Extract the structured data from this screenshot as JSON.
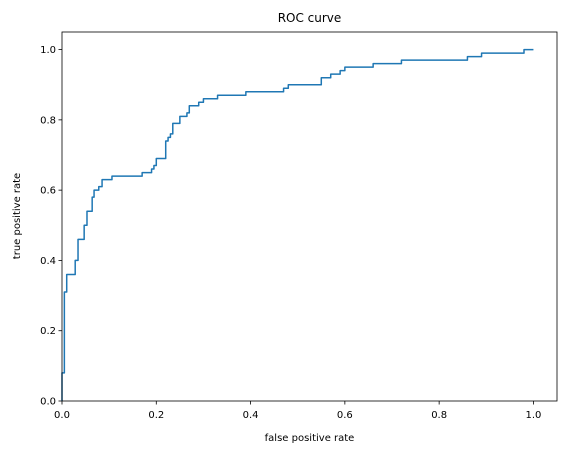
{
  "chart_data": {
    "type": "line",
    "title": "ROC curve",
    "x_label": "false positive rate",
    "y_label": "true positive rate",
    "color": "#1f77b4",
    "x": [
      0,
      0,
      0.005,
      0.005,
      0.01,
      0.01,
      0.028,
      0.028,
      0.034,
      0.034,
      0.047,
      0.047,
      0.053,
      0.053,
      0.064,
      0.064,
      0.068,
      0.068,
      0.078,
      0.078,
      0.085,
      0.085,
      0.106,
      0.106,
      0.17,
      0.17,
      0.19,
      0.19,
      0.195,
      0.195,
      0.2,
      0.2,
      0.22,
      0.22,
      0.225,
      0.225,
      0.23,
      0.23,
      0.235,
      0.235,
      0.25,
      0.25,
      0.265,
      0.265,
      0.27,
      0.27,
      0.29,
      0.29,
      0.3,
      0.3,
      0.33,
      0.33,
      0.39,
      0.39,
      0.47,
      0.47,
      0.48,
      0.48,
      0.55,
      0.55,
      0.57,
      0.57,
      0.59,
      0.59,
      0.6,
      0.6,
      0.66,
      0.66,
      0.72,
      0.72,
      0.86,
      0.86,
      0.89,
      0.89,
      0.98,
      0.98,
      1
    ],
    "values": [
      0,
      0.08,
      0.08,
      0.31,
      0.31,
      0.36,
      0.36,
      0.4,
      0.4,
      0.46,
      0.46,
      0.5,
      0.5,
      0.54,
      0.54,
      0.58,
      0.58,
      0.6,
      0.6,
      0.61,
      0.61,
      0.63,
      0.63,
      0.64,
      0.64,
      0.65,
      0.65,
      0.66,
      0.66,
      0.67,
      0.67,
      0.69,
      0.69,
      0.74,
      0.74,
      0.75,
      0.75,
      0.76,
      0.76,
      0.79,
      0.79,
      0.81,
      0.81,
      0.82,
      0.82,
      0.84,
      0.84,
      0.85,
      0.85,
      0.86,
      0.86,
      0.87,
      0.87,
      0.88,
      0.88,
      0.89,
      0.89,
      0.9,
      0.9,
      0.92,
      0.92,
      0.93,
      0.93,
      0.94,
      0.94,
      0.95,
      0.95,
      0.96,
      0.96,
      0.97,
      0.97,
      0.98,
      0.98,
      0.99,
      0.99,
      1,
      1
    ],
    "xlim": [
      0,
      1.05
    ],
    "ylim": [
      0,
      1.05
    ],
    "xticks": [
      {
        "value": 0,
        "label": "0.0"
      },
      0.2,
      0.4,
      0.6,
      0.8,
      {
        "value": 1,
        "label": "1.0"
      }
    ],
    "yticks": [
      {
        "value": 0,
        "label": "0.0"
      },
      0.2,
      0.4,
      0.6,
      0.8,
      {
        "value": 1,
        "label": "1.0"
      }
    ]
  }
}
